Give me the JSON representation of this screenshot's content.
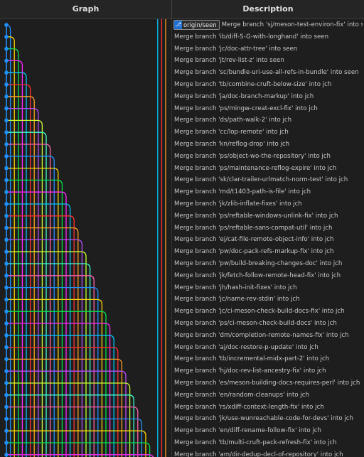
{
  "header": {
    "graph_label": "Graph",
    "description_label": "Description"
  },
  "first_row": {
    "badge_label": "origin/seen",
    "badge_icon": "branch-icon"
  },
  "lane_colors": [
    "#1e90ff",
    "#ffd700",
    "#00e04a",
    "#ff2aff",
    "#00c8ff",
    "#ff3030",
    "#ffa020",
    "#b84cff",
    "#c8ff30",
    "#40ffd0",
    "#ff60b0"
  ],
  "commits": [
    "Merge branch 'sj/meson-test-environ-fix' into s...",
    "Merge branch 'ib/diff-S-G-with-longhand' into seen",
    "Merge branch 'jc/doc-attr-tree' into seen",
    "Merge branch 'jt/rev-list-z' into seen",
    "Merge branch 'sc/bundle-uri-use-all-refs-in-bundle' into seen",
    "Merge branch 'tb/combine-cruft-below-size' into jch",
    "Merge branch 'ja/doc-branch-markup' into jch",
    "Merge branch 'ps/mingw-creat-excl-fix' into jch",
    "Merge branch 'ds/path-walk-2' into jch",
    "Merge branch 'cc/lop-remote' into jch",
    "Merge branch 'kn/reflog-drop' into jch",
    "Merge branch 'ps/object-wo-the-repository' into jch",
    "Merge branch 'ps/maintenance-reflog-expire' into jch",
    "Merge branch 'sk/clar-trailer-urlmatch-norm-test' into jch",
    "Merge branch 'md/t1403-path-is-file' into jch",
    "Merge branch 'jk/zlib-inflate-fixes' into jch",
    "Merge branch 'ps/reftable-windows-unlink-fix' into jch",
    "Merge branch 'ps/reftable-sans-compat-util' into jch",
    "Merge branch 'ej/cat-file-remote-object-info' into jch",
    "Merge branch 'pw/doc-pack-refs-markup-fix' into jch",
    "Merge branch 'pw/build-breaking-changes-doc' into jch",
    "Merge branch 'jk/fetch-follow-remote-head-fix' into jch",
    "Merge branch 'jh/hash-init-fixes' into jch",
    "Merge branch 'jc/name-rev-stdin' into jch",
    "Merge branch 'jc/ci-meson-check-build-docs-fix' into jch",
    "Merge branch 'ps/ci-meson-check-build-docs' into jch",
    "Merge branch 'dm/completion-remote-names-fix' into jch",
    "Merge branch 'aj/doc-restore-p-update' into jch",
    "Merge branch 'tb/incremental-midx-part-2' into jch",
    "Merge branch 'hj/doc-rev-list-ancestry-fix' into jch",
    "Merge branch 'es/meson-building-docs-requires-perl' into jch",
    "Merge branch 'en/random-cleanups' into jch",
    "Merge branch 'rs/xdiff-context-length-fix' into jch",
    "Merge branch 'jk/use-wunreachable-code-for-devs' into jch",
    "Merge branch 'en/diff-rename-follow-fix' into jch",
    "Merge branch 'tb/multi-cruft-pack-refresh-fix' into jch",
    "Merge branch 'am/dir-dedup-decl-of-repository' into jch"
  ]
}
